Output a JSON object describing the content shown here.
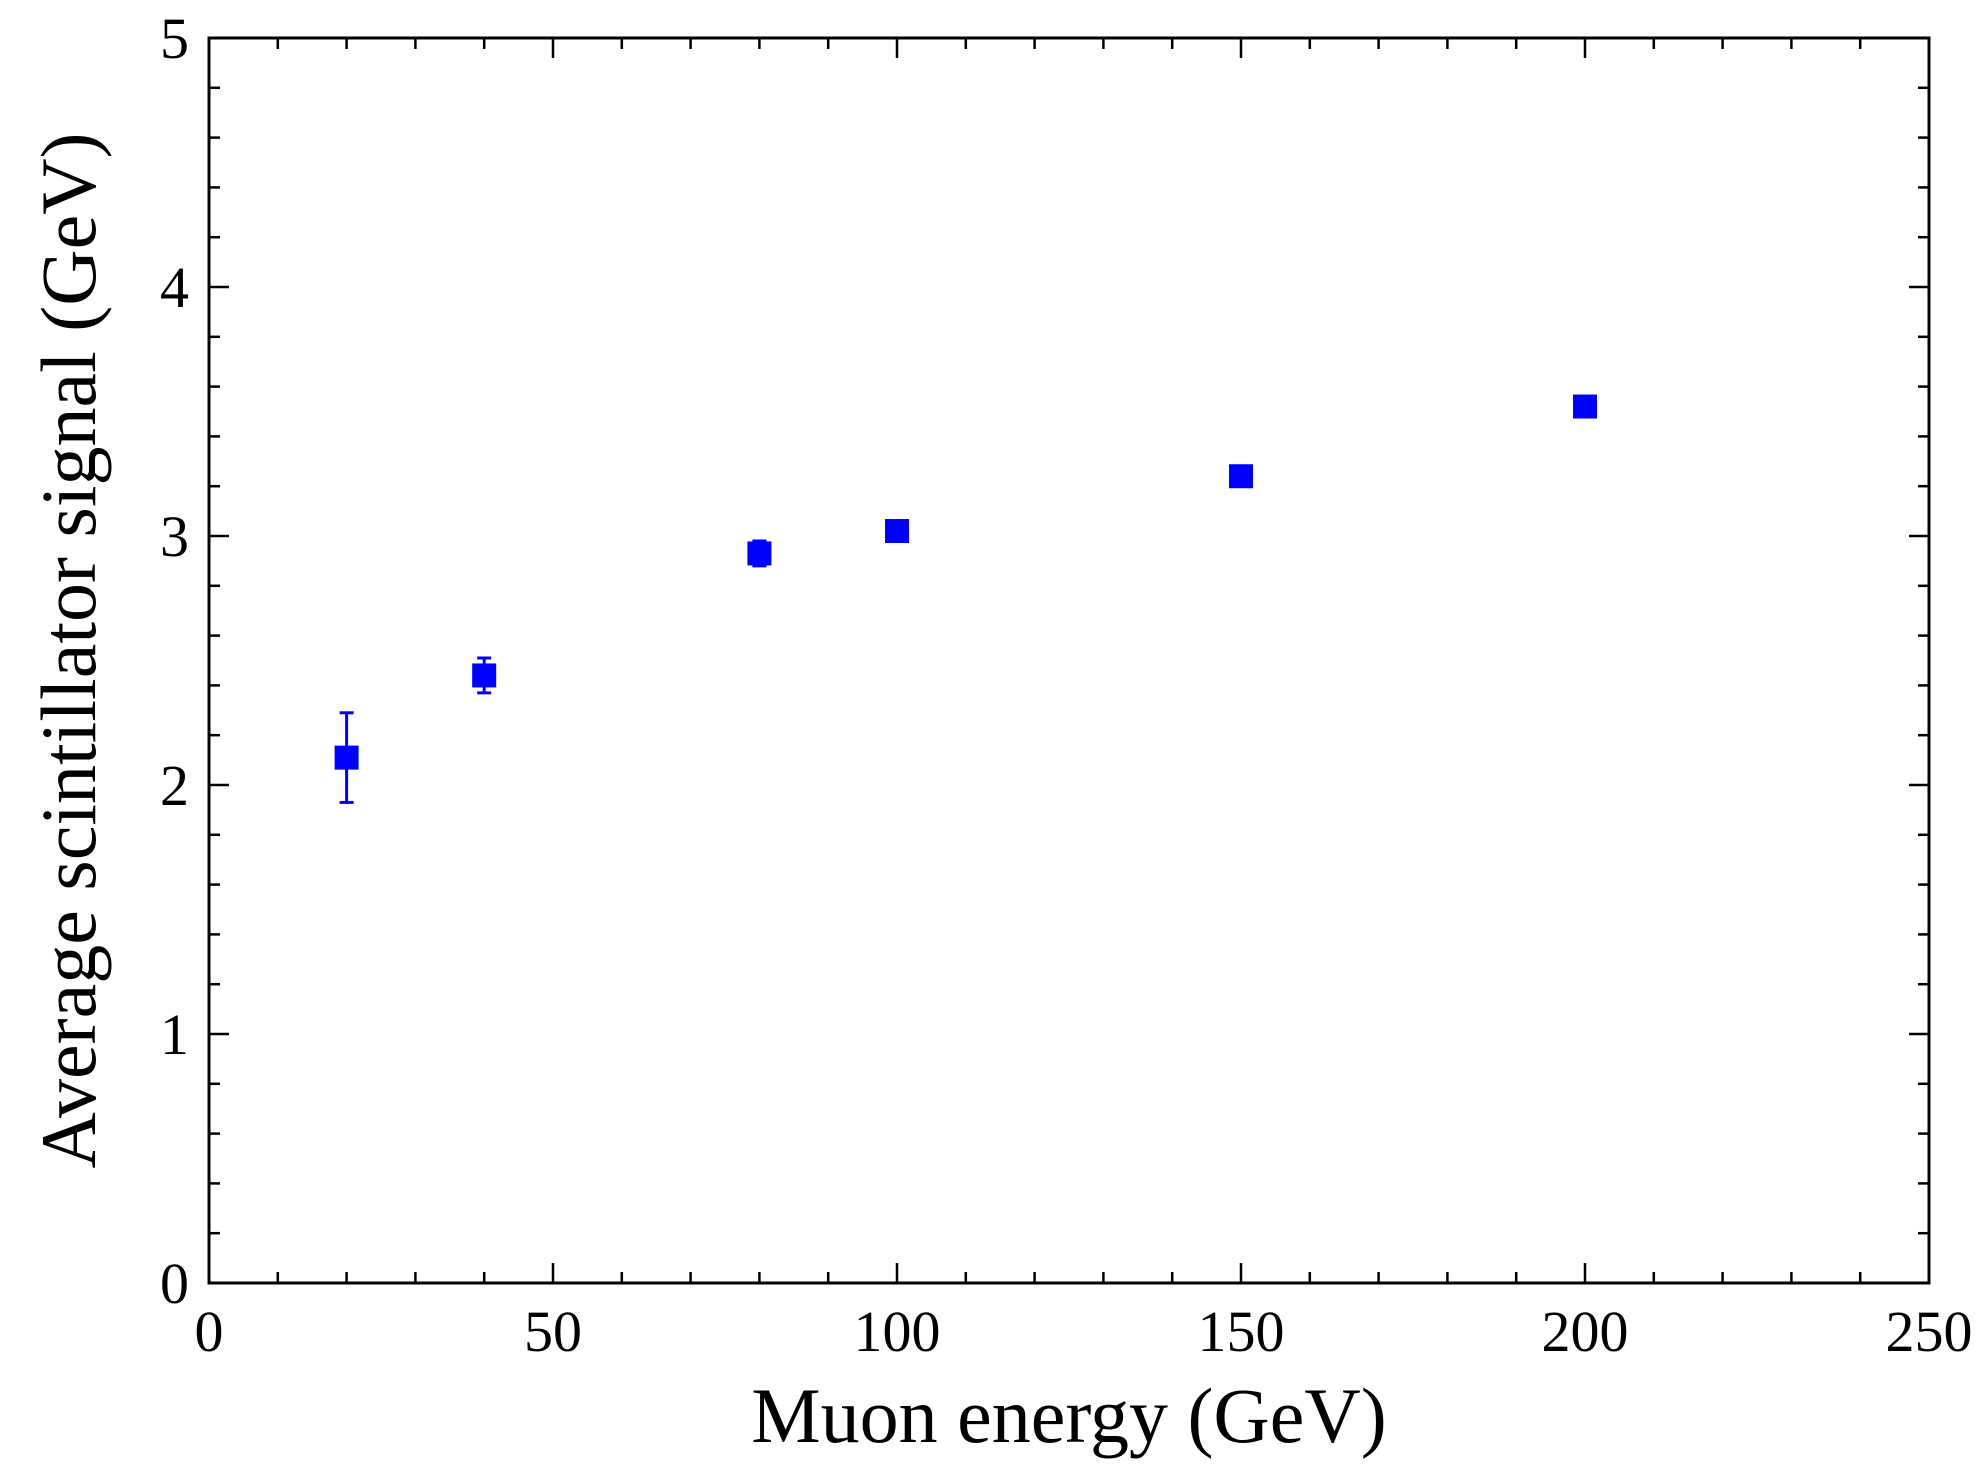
{
  "chart_data": {
    "type": "scatter",
    "title": "",
    "xlabel": "Muon energy (GeV)",
    "ylabel": "Average scintillator signal (GeV)",
    "xlim": [
      0,
      250
    ],
    "ylim": [
      0,
      5
    ],
    "x_ticks": [
      "0",
      "50",
      "100",
      "150",
      "200",
      "250"
    ],
    "y_ticks": [
      "0",
      "1",
      "2",
      "3",
      "4",
      "5"
    ],
    "grid": false,
    "legend": "none",
    "series": [
      {
        "name": "scintillator signal",
        "color": "#0000ff",
        "marker": "square",
        "x": [
          20,
          40,
          80,
          100,
          150,
          200
        ],
        "y": [
          2.11,
          2.44,
          2.93,
          3.02,
          3.24,
          3.52
        ],
        "yerr": [
          0.18,
          0.07,
          0.05,
          0.02,
          0.02,
          0.02
        ]
      }
    ]
  }
}
